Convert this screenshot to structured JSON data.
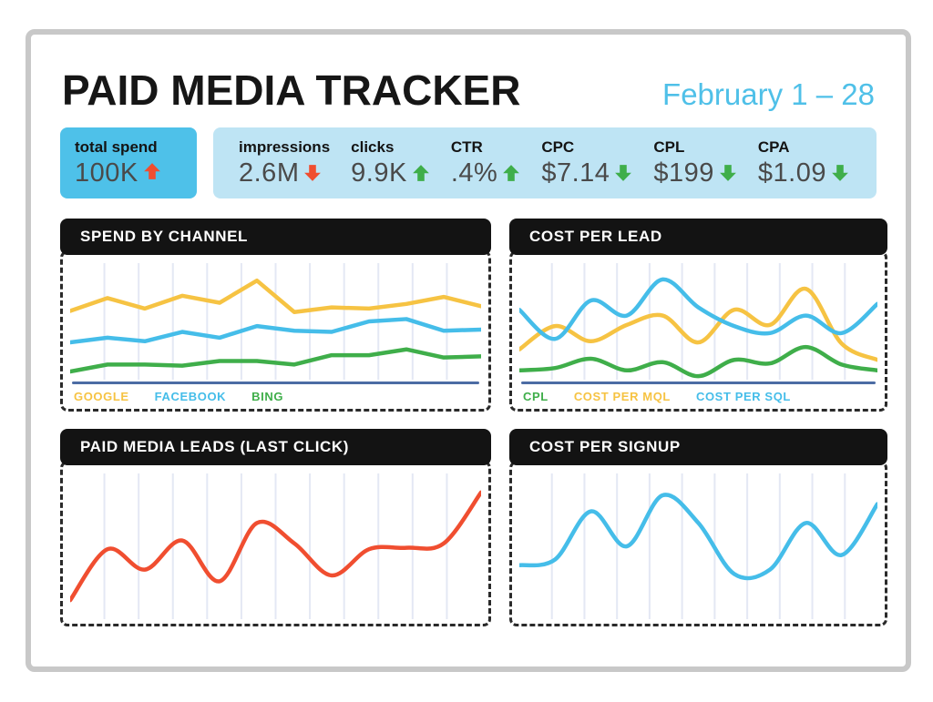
{
  "page": {
    "title": "PAID MEDIA TRACKER",
    "date_range": "February 1 – 28"
  },
  "colors": {
    "accent_blue": "#4fc0e8",
    "kpi_highlight_bg": "#4ec1e9",
    "kpi_bar_bg": "#bee4f4",
    "positive_green": "#3fae4a",
    "negative_red": "#f04e30",
    "panel_header_bg": "#131313",
    "axis_baseline_blue": "#4c6ca4",
    "gridline": "#e4e8f4",
    "frame_gray": "#c8c8c8"
  },
  "kpi": {
    "highlight": {
      "label": "total spend",
      "value": "100K",
      "trend": "up",
      "trend_color": "#f04e30"
    },
    "metrics": [
      {
        "label": "impressions",
        "value": "2.6M",
        "trend": "down",
        "trend_color": "#f04e30"
      },
      {
        "label": "clicks",
        "value": "9.9K",
        "trend": "up",
        "trend_color": "#3fae4a"
      },
      {
        "label": "CTR",
        "value": ".4%",
        "trend": "up",
        "trend_color": "#3fae4a"
      },
      {
        "label": "CPC",
        "value": "$7.14",
        "trend": "down",
        "trend_color": "#3fae4a"
      },
      {
        "label": "CPL",
        "value": "$199",
        "trend": "down",
        "trend_color": "#3fae4a"
      },
      {
        "label": "CPA",
        "value": "$1.09",
        "trend": "down",
        "trend_color": "#3fae4a"
      }
    ]
  },
  "chart_data": [
    {
      "id": "spend-by-channel",
      "title": "SPEND BY CHANNEL",
      "type": "line",
      "smooth": false,
      "baseline": true,
      "show_legend": true,
      "gridlines": 11,
      "x_axis": "Feb 1 – Feb 28 (unlabeled)",
      "y_axis": "spend (unlabeled, relative 0–100)",
      "series": [
        {
          "name": "GOOGLE",
          "color": "#f6c343",
          "values": [
            59,
            70,
            61,
            72,
            66,
            85,
            58,
            62,
            61,
            65,
            71,
            63
          ]
        },
        {
          "name": "FACEBOOK",
          "color": "#45bde9",
          "values": [
            32,
            36,
            33,
            41,
            36,
            46,
            42,
            41,
            50,
            52,
            42,
            43
          ]
        },
        {
          "name": "BING",
          "color": "#3fae4a",
          "values": [
            7,
            13,
            13,
            12,
            16,
            16,
            13,
            21,
            21,
            26,
            19,
            20
          ]
        }
      ]
    },
    {
      "id": "cost-per-lead",
      "title": "COST PER LEAD",
      "type": "line",
      "smooth": true,
      "baseline": true,
      "show_legend": true,
      "gridlines": 10,
      "x_axis": "Feb 1 – Feb 28 (unlabeled)",
      "y_axis": "cost (unlabeled, relative 0–100)",
      "series": [
        {
          "name": "CPL",
          "color": "#3fae4a",
          "values": [
            8,
            10,
            18,
            8,
            15,
            3,
            17,
            14,
            28,
            13,
            8
          ]
        },
        {
          "name": "COST PER MQL",
          "color": "#f6c343",
          "values": [
            26,
            46,
            33,
            47,
            55,
            32,
            60,
            47,
            78,
            31,
            17
          ]
        },
        {
          "name": "COST PER SQL",
          "color": "#45bde9",
          "values": [
            60,
            35,
            68,
            55,
            86,
            62,
            46,
            40,
            55,
            40,
            65
          ]
        }
      ]
    },
    {
      "id": "paid-media-leads-last-click",
      "title": "PAID MEDIA LEADS (LAST CLICK)",
      "type": "line",
      "smooth": true,
      "baseline": false,
      "show_legend": false,
      "gridlines": 11,
      "x_axis": "Feb 1 – Feb 28 (unlabeled)",
      "y_axis": "leads (unlabeled, relative 0–100)",
      "series": [
        {
          "name": "PAID MEDIA LEADS",
          "color": "#f04e30",
          "values": [
            13,
            48,
            34,
            54,
            26,
            66,
            52,
            30,
            48,
            49,
            52,
            87
          ]
        }
      ]
    },
    {
      "id": "cost-per-signup",
      "title": "COST PER SIGNUP",
      "type": "line",
      "smooth": true,
      "baseline": false,
      "show_legend": false,
      "gridlines": 10,
      "x_axis": "Feb 1 – Feb 28 (unlabeled)",
      "y_axis": "cost (unlabeled, relative 0–100)",
      "series": [
        {
          "name": "COST PER SIGNUP",
          "color": "#45bde9",
          "values": [
            37,
            41,
            74,
            50,
            85,
            66,
            31,
            34,
            66,
            44,
            79
          ]
        }
      ]
    }
  ]
}
